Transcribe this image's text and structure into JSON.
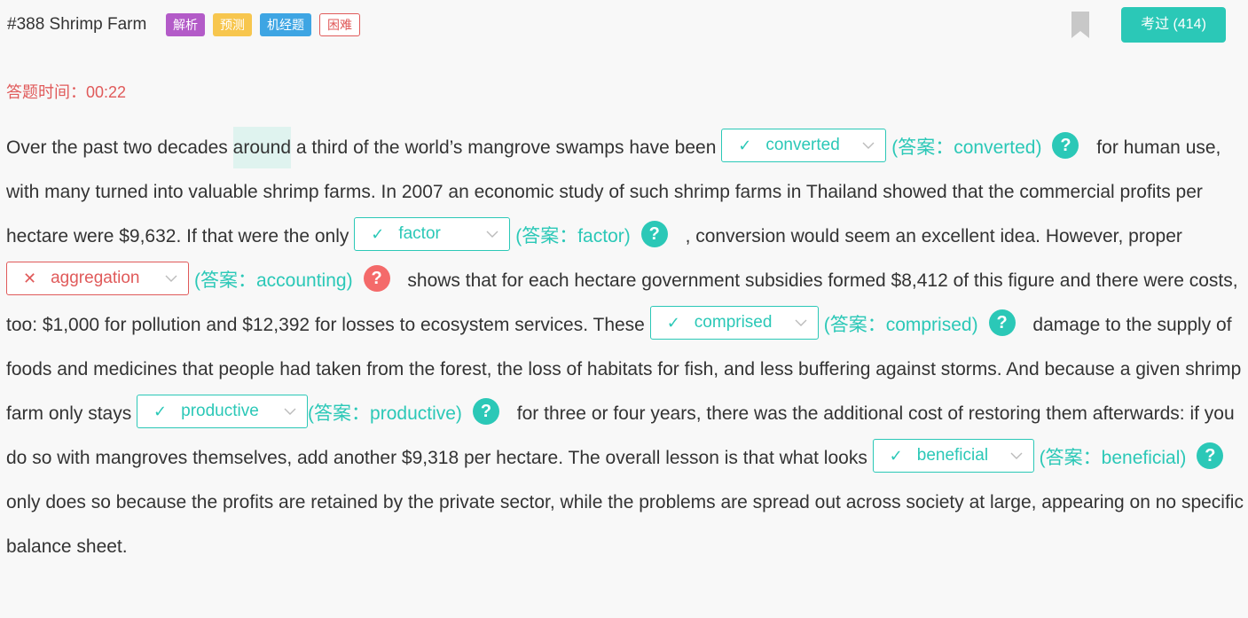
{
  "header": {
    "title": "#388 Shrimp Farm",
    "tags": [
      "解析",
      "预测",
      "机经题",
      "困难"
    ],
    "pass_button": "考过 (414)"
  },
  "timer": "答题时间：00:22",
  "passage": {
    "s0": "Over the past two decades ",
    "s0_highlight": "around",
    "s0b": " a third of the world’s mangrove swamps have been ",
    "s1": " for human use, with many turned into valuable shrimp farms. In 2007 an economic study of such shrimp farms in Thailand showed that the commercial profits per hectare were $9,632. If that were the only ",
    "s2": " , conversion would seem an excellent idea. However, proper ",
    "s3": " shows that for each hectare government subsidies formed $8,412 of this figure and there were costs, too: $1,000 for pollution and $12,392 for losses to ecosystem services. These ",
    "s4": " damage to the supply of foods and medicines that people had taken from the forest, the loss of habitats for fish, and less buffering against storms. And because a given shrimp farm only stays ",
    "s5": " for three or four years, there was the additional cost of restoring them afterwards: if you do so with mangroves themselves, add another $9,318 per hectare. The overall lesson is that what looks ",
    "s6": " only does so because the profits are retained by the private sector, while the problems are spread out across society at large, appearing on no specific balance sheet."
  },
  "blanks": [
    {
      "mark": "✓",
      "value": "converted",
      "answer": "(答案：converted)",
      "correct": true
    },
    {
      "mark": "✓",
      "value": "factor",
      "answer": "(答案：factor)",
      "correct": true
    },
    {
      "mark": "✕",
      "value": "aggregation",
      "answer": "(答案：accounting)",
      "correct": false
    },
    {
      "mark": "✓",
      "value": "comprised",
      "answer": "(答案：comprised)",
      "correct": true
    },
    {
      "mark": "✓",
      "value": "productive",
      "answer": "(答案：productive)",
      "correct": true
    },
    {
      "mark": "✓",
      "value": "beneficial",
      "answer": "(答案：beneficial)",
      "correct": true
    }
  ],
  "help_symbol": "?",
  "colors": {
    "accent": "#2bc8b7",
    "error": "#e05a5a",
    "tag_analysis": "#b35bc8",
    "tag_predict": "#f7c64e",
    "tag_exam": "#3ea5e3"
  },
  "icons": {
    "bookmark": "bookmark-icon",
    "dropdown": "chevron-down-icon",
    "help": "help-icon"
  }
}
